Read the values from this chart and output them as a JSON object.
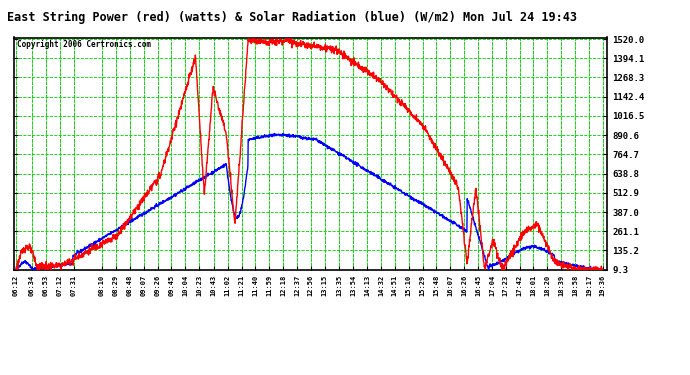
{
  "title": "East String Power (red) (watts) & Solar Radiation (blue) (W/m2) Mon Jul 24 19:43",
  "copyright": "Copyright 2006 Certronics.com",
  "bg_color": "#ffffff",
  "plot_bg_color": "#ffffff",
  "grid_color": "#00cc00",
  "yticks": [
    9.3,
    135.2,
    261.1,
    387.0,
    512.9,
    638.8,
    764.7,
    890.6,
    1016.5,
    1142.4,
    1268.3,
    1394.1,
    1520.0
  ],
  "ymin": 9.3,
  "ymax": 1520.0,
  "xtick_labels": [
    "06:12",
    "06:34",
    "06:53",
    "07:12",
    "07:31",
    "08:10",
    "08:29",
    "08:48",
    "09:07",
    "09:26",
    "09:45",
    "10:04",
    "10:23",
    "10:43",
    "11:02",
    "11:21",
    "11:40",
    "11:59",
    "12:18",
    "12:37",
    "12:56",
    "13:15",
    "13:35",
    "13:54",
    "14:13",
    "14:32",
    "14:51",
    "15:10",
    "15:29",
    "15:48",
    "16:07",
    "16:26",
    "16:45",
    "17:04",
    "17:23",
    "17:42",
    "18:01",
    "18:20",
    "18:39",
    "18:58",
    "19:17",
    "19:36"
  ],
  "red_line_color": "#ff0000",
  "blue_line_color": "#0000ff",
  "line_width": 1.0
}
